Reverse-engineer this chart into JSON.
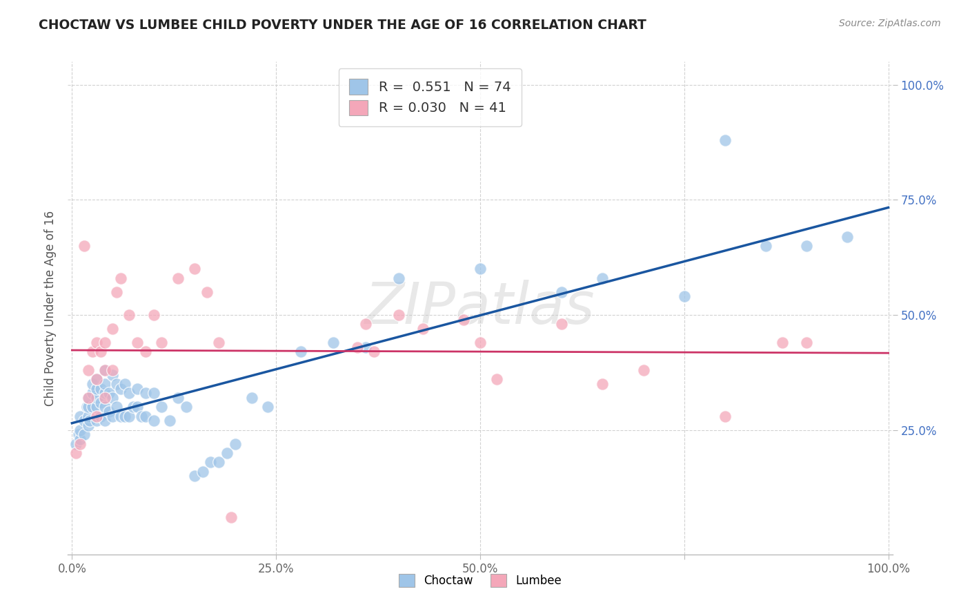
{
  "title": "CHOCTAW VS LUMBEE CHILD POVERTY UNDER THE AGE OF 16 CORRELATION CHART",
  "source": "Source: ZipAtlas.com",
  "ylabel": "Child Poverty Under the Age of 16",
  "watermark": "ZIPatlas",
  "choctaw_R": 0.551,
  "choctaw_N": 74,
  "lumbee_R": 0.03,
  "lumbee_N": 41,
  "choctaw_color": "#9fc5e8",
  "lumbee_color": "#f4a7b9",
  "choctaw_line_color": "#1a56a0",
  "lumbee_line_color": "#cc3366",
  "bg_color": "#ffffff",
  "grid_color": "#cccccc",
  "title_color": "#222222",
  "source_color": "#888888",
  "ytick_color": "#4472c4",
  "xtick_color": "#666666",
  "choctaw_x": [
    0.005,
    0.008,
    0.01,
    0.01,
    0.01,
    0.015,
    0.015,
    0.018,
    0.02,
    0.02,
    0.02,
    0.02,
    0.022,
    0.025,
    0.025,
    0.025,
    0.03,
    0.03,
    0.03,
    0.03,
    0.03,
    0.035,
    0.035,
    0.035,
    0.04,
    0.04,
    0.04,
    0.04,
    0.04,
    0.045,
    0.045,
    0.05,
    0.05,
    0.05,
    0.055,
    0.055,
    0.06,
    0.06,
    0.065,
    0.065,
    0.07,
    0.07,
    0.075,
    0.08,
    0.08,
    0.085,
    0.09,
    0.09,
    0.1,
    0.1,
    0.11,
    0.12,
    0.13,
    0.14,
    0.15,
    0.16,
    0.17,
    0.18,
    0.19,
    0.2,
    0.22,
    0.24,
    0.28,
    0.32,
    0.36,
    0.4,
    0.5,
    0.6,
    0.65,
    0.75,
    0.8,
    0.85,
    0.9,
    0.95
  ],
  "choctaw_y": [
    0.22,
    0.24,
    0.23,
    0.25,
    0.28,
    0.24,
    0.27,
    0.3,
    0.26,
    0.28,
    0.3,
    0.32,
    0.27,
    0.3,
    0.33,
    0.35,
    0.27,
    0.3,
    0.32,
    0.34,
    0.36,
    0.28,
    0.31,
    0.34,
    0.27,
    0.3,
    0.33,
    0.35,
    0.38,
    0.29,
    0.33,
    0.28,
    0.32,
    0.37,
    0.3,
    0.35,
    0.28,
    0.34,
    0.28,
    0.35,
    0.28,
    0.33,
    0.3,
    0.3,
    0.34,
    0.28,
    0.28,
    0.33,
    0.27,
    0.33,
    0.3,
    0.27,
    0.32,
    0.3,
    0.15,
    0.16,
    0.18,
    0.18,
    0.2,
    0.22,
    0.32,
    0.3,
    0.42,
    0.44,
    0.43,
    0.58,
    0.6,
    0.55,
    0.58,
    0.54,
    0.88,
    0.65,
    0.65,
    0.67
  ],
  "lumbee_x": [
    0.005,
    0.01,
    0.015,
    0.02,
    0.02,
    0.025,
    0.03,
    0.03,
    0.03,
    0.035,
    0.04,
    0.04,
    0.04,
    0.05,
    0.05,
    0.055,
    0.06,
    0.07,
    0.08,
    0.09,
    0.1,
    0.11,
    0.13,
    0.15,
    0.165,
    0.18,
    0.195,
    0.35,
    0.36,
    0.37,
    0.4,
    0.43,
    0.48,
    0.5,
    0.52,
    0.6,
    0.65,
    0.7,
    0.8,
    0.87,
    0.9
  ],
  "lumbee_y": [
    0.2,
    0.22,
    0.65,
    0.32,
    0.38,
    0.42,
    0.28,
    0.36,
    0.44,
    0.42,
    0.32,
    0.38,
    0.44,
    0.38,
    0.47,
    0.55,
    0.58,
    0.5,
    0.44,
    0.42,
    0.5,
    0.44,
    0.58,
    0.6,
    0.55,
    0.44,
    0.06,
    0.43,
    0.48,
    0.42,
    0.5,
    0.47,
    0.49,
    0.44,
    0.36,
    0.48,
    0.35,
    0.38,
    0.28,
    0.44,
    0.44
  ],
  "xlim": [
    -0.005,
    1.005
  ],
  "ylim": [
    -0.02,
    1.05
  ],
  "xticks": [
    0.0,
    0.25,
    0.5,
    0.75,
    1.0
  ],
  "xtick_labels": [
    "0.0%",
    "25.0%",
    "50.0%",
    "",
    "100.0%"
  ],
  "yticks": [
    0.25,
    0.5,
    0.75,
    1.0
  ],
  "ytick_labels": [
    "25.0%",
    "50.0%",
    "75.0%",
    "100.0%"
  ]
}
